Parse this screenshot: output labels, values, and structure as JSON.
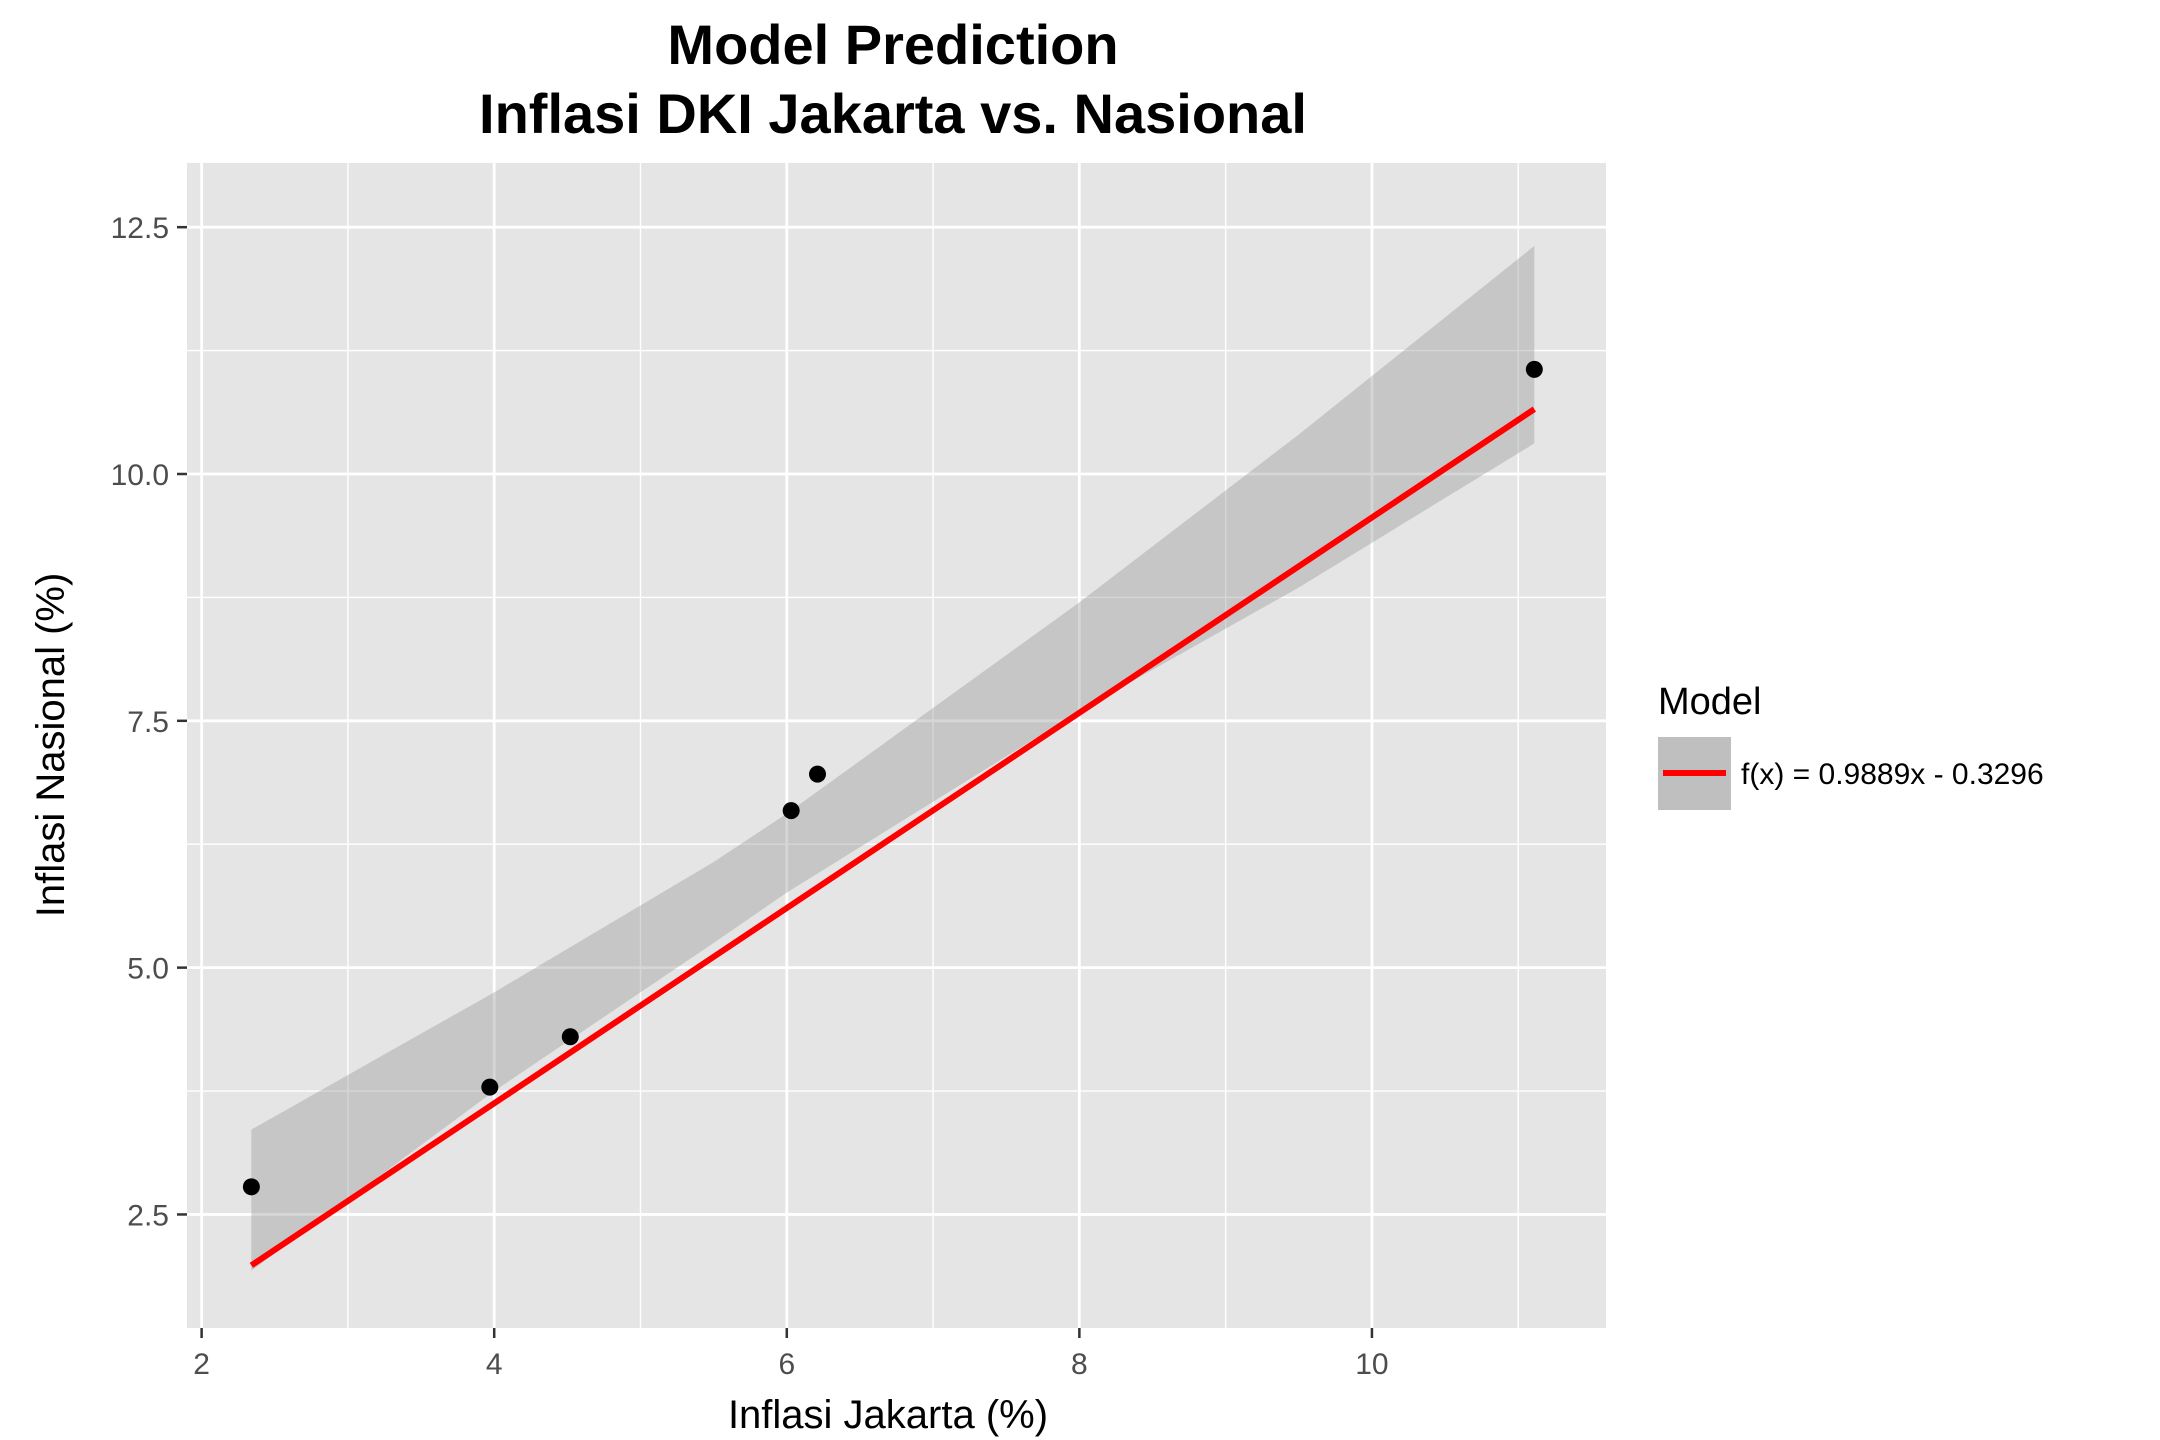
{
  "chart_data": {
    "type": "scatter",
    "title": [
      "Model Prediction",
      "Inflasi DKI Jakarta vs. Nasional"
    ],
    "xlabel": "Inflasi Jakarta (%)",
    "ylabel": "Inflasi Nasional (%)",
    "xlim": [
      1.9,
      11.6
    ],
    "ylim": [
      1.35,
      13.15
    ],
    "x_ticks": [
      2,
      4,
      6,
      8,
      10
    ],
    "y_ticks": [
      2.5,
      5.0,
      7.5,
      10.0,
      12.5
    ],
    "x_tick_labels": [
      "2",
      "4",
      "6",
      "8",
      "10"
    ],
    "y_tick_labels": [
      "2.5",
      "5.0",
      "7.5",
      "10.0",
      "12.5"
    ],
    "grid": true,
    "points": [
      {
        "x": 2.34,
        "y": 2.78
      },
      {
        "x": 3.97,
        "y": 3.79
      },
      {
        "x": 4.52,
        "y": 4.3
      },
      {
        "x": 6.03,
        "y": 6.59
      },
      {
        "x": 6.21,
        "y": 6.96
      },
      {
        "x": 11.11,
        "y": 11.06
      }
    ],
    "fit_line": {
      "slope": 0.9889,
      "intercept": -0.3296,
      "x_range": [
        2.34,
        11.11
      ]
    },
    "confidence_band": [
      {
        "x": 2.34,
        "lower": 1.93,
        "upper": 3.36
      },
      {
        "x": 4.0,
        "lower": 3.75,
        "upper": 4.75
      },
      {
        "x": 5.5,
        "lower": 5.25,
        "upper": 6.07
      },
      {
        "x": 6.0,
        "lower": 5.76,
        "upper": 6.56
      },
      {
        "x": 8.0,
        "lower": 7.6,
        "upper": 8.7
      },
      {
        "x": 9.5,
        "lower": 8.85,
        "upper": 10.4
      },
      {
        "x": 11.11,
        "lower": 10.31,
        "upper": 12.31
      }
    ],
    "legend": {
      "title": "Model",
      "position": "right",
      "entries": [
        {
          "label": "f(x) = 0.9889x - 0.3296",
          "color": "#ff0000"
        }
      ]
    },
    "colors": {
      "panel_background": "#e5e5e5",
      "gridline": "#ffffff",
      "band": "#bfbfbf",
      "line": "#ff0000",
      "point": "#000000"
    }
  }
}
